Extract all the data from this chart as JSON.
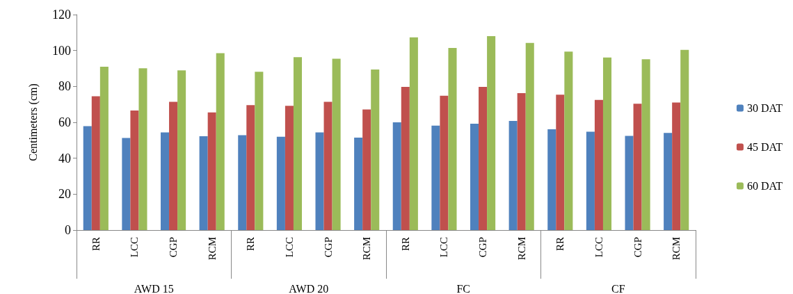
{
  "chart_data": {
    "type": "bar",
    "ylabel": "Centimeters (cm)",
    "categories": [
      "RR",
      "LCC",
      "CGP",
      "RCM",
      "RR",
      "LCC",
      "CGP",
      "RCM",
      "RR",
      "LCC",
      "CGP",
      "RCM",
      "RR",
      "LCC",
      "CGP",
      "RCM"
    ],
    "annotations": [
      "AWD 15",
      "AWD 20",
      "FC",
      "CF"
    ],
    "series": [
      {
        "name": "30 DAT",
        "color": "#4f81bd",
        "values": [
          57.9,
          51.3,
          54.4,
          52.3,
          52.8,
          52.0,
          54.4,
          51.5,
          60.0,
          58.2,
          59.2,
          60.8,
          56.1,
          54.8,
          52.5,
          54.1
        ]
      },
      {
        "name": "45 DAT",
        "color": "#c0504d",
        "values": [
          74.5,
          66.6,
          71.4,
          65.5,
          69.6,
          69.2,
          71.4,
          67.2,
          79.7,
          74.8,
          79.7,
          76.3,
          75.4,
          72.5,
          70.4,
          71.0
        ]
      },
      {
        "name": "60 DAT",
        "color": "#9bbb59",
        "values": [
          91.0,
          90.1,
          88.9,
          98.5,
          88.2,
          96.3,
          95.4,
          89.4,
          107.3,
          101.4,
          108.0,
          104.2,
          99.4,
          96.1,
          95.1,
          100.4
        ]
      }
    ],
    "ylim": [
      0,
      120
    ],
    "yticks": [
      0,
      20,
      40,
      60,
      80,
      100,
      120
    ],
    "grid": false,
    "legend": "right"
  }
}
